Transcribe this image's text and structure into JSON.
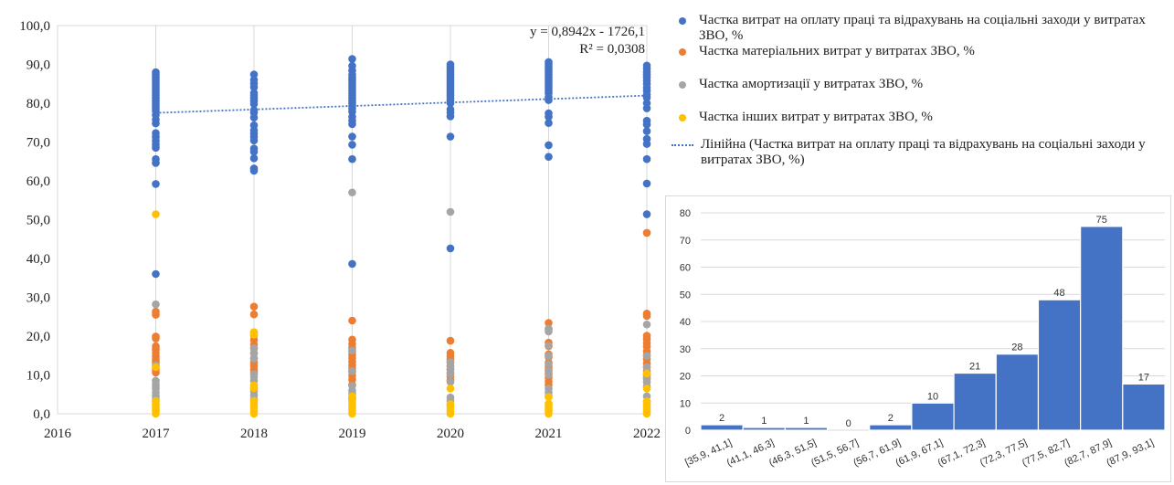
{
  "chart_data": [
    {
      "type": "scatter",
      "title": "",
      "xlabel": "",
      "ylabel": "",
      "xlim": [
        2016,
        2022
      ],
      "ylim": [
        0,
        100
      ],
      "x_ticks": [
        "2016",
        "2017",
        "2018",
        "2019",
        "2020",
        "2021",
        "2022"
      ],
      "y_ticks": [
        "0,0",
        "10,0",
        "20,0",
        "30,0",
        "40,0",
        "50,0",
        "60,0",
        "70,0",
        "80,0",
        "90,0",
        "100,0"
      ],
      "grid": "vertical",
      "legend_position": "right",
      "colors": {
        "blue": "#4472c4",
        "orange": "#ed7d31",
        "gray": "#a5a5a5",
        "yellow": "#ffc000"
      },
      "series": [
        {
          "name": "Частка витрат на оплату праці та відрахувань на соціальні заходи у витратах ЗВО, %",
          "color": "#4472c4",
          "points": [
            {
              "x": 2017,
              "y": [
                88,
                87.3,
                86.6,
                86,
                85.3,
                84.6,
                84,
                83.3,
                82.6,
                82,
                81.3,
                80.6,
                80,
                79.3,
                78.6,
                78,
                77,
                75.8,
                74.8,
                72.3,
                71.3,
                70.3,
                69.3,
                68.5,
                65.6,
                64.6,
                59.2,
                36
              ]
            },
            {
              "x": 2018,
              "y": [
                87.4,
                86,
                85.1,
                84.1,
                82.6,
                82,
                81.3,
                80.6,
                79.8,
                78.2,
                77.6,
                76.3,
                74.3,
                73,
                72.2,
                71.3,
                70.4,
                68.3,
                67.5,
                65.8,
                63.2,
                62.6
              ]
            },
            {
              "x": 2019,
              "y": [
                91.4,
                89.6,
                88.4,
                87.3,
                86.6,
                86,
                85.3,
                84.6,
                84,
                83.3,
                82.6,
                82,
                81.3,
                80.6,
                80,
                79.3,
                78.6,
                77.8,
                76.5,
                75.5,
                74.6,
                71.4,
                69.3,
                65.6,
                38.6
              ]
            },
            {
              "x": 2020,
              "y": [
                90,
                89.3,
                88.6,
                88,
                87.3,
                86.6,
                86,
                85.3,
                84.6,
                84,
                83.3,
                82.6,
                82,
                81.3,
                80.6,
                80,
                78.4,
                77.6,
                76.6,
                71.4,
                42.6
              ]
            },
            {
              "x": 2021,
              "y": [
                90.6,
                90,
                89.3,
                88.6,
                88,
                87.3,
                86.6,
                86,
                85.3,
                84.6,
                84,
                83.3,
                82.6,
                81.6,
                80.8,
                77.4,
                76.5,
                74.9,
                69.2,
                66.2
              ]
            },
            {
              "x": 2022,
              "y": [
                89.7,
                88.9,
                88,
                87.3,
                86.6,
                85.8,
                85,
                84,
                83.2,
                82.2,
                81.4,
                80,
                78.7,
                75.5,
                74.5,
                72.8,
                70.8,
                69.5,
                65.6,
                59.3,
                51.4
              ]
            }
          ]
        },
        {
          "name": "Частка матеріальних витрат у витратах ЗВО, %",
          "color": "#ed7d31",
          "points": [
            {
              "x": 2017,
              "y": [
                26.3,
                25.5,
                19.9,
                19.4,
                17.4,
                16.6,
                15.7,
                14.8,
                14,
                13.3,
                12.4,
                11.5,
                10.6
              ]
            },
            {
              "x": 2018,
              "y": [
                27.6,
                25.6,
                21,
                20.2,
                19,
                17.8,
                16.8,
                15.6,
                14.3,
                13.2,
                12.3,
                11.3,
                10.6
              ]
            },
            {
              "x": 2019,
              "y": [
                24,
                19.1,
                18,
                17,
                16.1,
                15.2,
                14.3,
                13.4,
                12.5,
                11.6,
                10.8,
                9.8,
                8.8,
                7.5
              ]
            },
            {
              "x": 2020,
              "y": [
                18.8,
                15.7,
                14.8,
                14,
                13.2,
                12.3,
                11.4,
                10.5,
                9.6,
                8.6
              ]
            },
            {
              "x": 2021,
              "y": [
                23.4,
                21.8,
                18.3,
                17.4,
                15.3,
                14.6,
                13.2,
                12.2,
                11.3,
                10.4,
                9.3,
                8.3,
                7.4
              ]
            },
            {
              "x": 2022,
              "y": [
                46.6,
                25.8,
                25.2,
                20.1,
                19.2,
                18.2,
                17.3,
                16.1,
                15.1,
                14.1,
                13,
                12,
                11,
                10,
                9
              ]
            }
          ]
        },
        {
          "name": "Частка амортизації у витратах ЗВО, %",
          "color": "#a5a5a5",
          "points": [
            {
              "x": 2017,
              "y": [
                28.2,
                12.5,
                8.5,
                7.6,
                7,
                6.5,
                5.5,
                4.5,
                3.8
              ]
            },
            {
              "x": 2018,
              "y": [
                16.9,
                15.6,
                14.2,
                10.2,
                9.5,
                8.5,
                6.5,
                5.8,
                4.8,
                3.8
              ]
            },
            {
              "x": 2019,
              "y": [
                57,
                16.3,
                11,
                7.2,
                6,
                5.2,
                4.2,
                3.6
              ]
            },
            {
              "x": 2020,
              "y": [
                52,
                13.3,
                12.2,
                11.4,
                10.2,
                8.2,
                4.2,
                3.3,
                2.2
              ]
            },
            {
              "x": 2021,
              "y": [
                21.9,
                21.2,
                17.5,
                14.9,
                12.8,
                11,
                10,
                6.5,
                5.5,
                4.5
              ]
            },
            {
              "x": 2022,
              "y": [
                23,
                14.9,
                12,
                9.3,
                8.2,
                7.1,
                4.5
              ]
            }
          ]
        },
        {
          "name": "Частка інших витрат у витратах ЗВО, %",
          "color": "#ffc000",
          "points": [
            {
              "x": 2017,
              "y": [
                51.4,
                12,
                3.3,
                2.5,
                1.8,
                1.2,
                0.6,
                0
              ]
            },
            {
              "x": 2018,
              "y": [
                21,
                20.4,
                7.3,
                6.6,
                3.3,
                2.6,
                1.9,
                1.2,
                0.6,
                0
              ]
            },
            {
              "x": 2019,
              "y": [
                4.5,
                3.1,
                2.5,
                1.8,
                1.2,
                0.6,
                0
              ]
            },
            {
              "x": 2020,
              "y": [
                6.5,
                2.5,
                1.8,
                1.2,
                0.6,
                0
              ]
            },
            {
              "x": 2021,
              "y": [
                4.3,
                2.6,
                1.9,
                1.2,
                0.6,
                0
              ]
            },
            {
              "x": 2022,
              "y": [
                10.4,
                6.5,
                3.2,
                2.5,
                1.8,
                1.2,
                0.6,
                0
              ]
            }
          ]
        }
      ],
      "trendline": {
        "name": "Лінійна (Частка витрат на оплату праці та відрахувань на соціальні заходи у витратах ЗВО, %)",
        "color": "#4472c4",
        "slope": 0.8942,
        "intercept": -1726.1,
        "x_range": [
          2017,
          2022
        ],
        "equation": "y = 0,8942x - 1726,1",
        "r2": "R² = 0,0308"
      }
    },
    {
      "type": "bar",
      "title": "",
      "xlabel": "",
      "ylabel": "",
      "ylim": [
        0,
        80
      ],
      "y_ticks": [
        "0",
        "10",
        "20",
        "30",
        "40",
        "50",
        "60",
        "70",
        "80"
      ],
      "color": "#4472c4",
      "categories": [
        "[35,9, 41,1]",
        "(41,1, 46,3]",
        "(46,3, 51,5]",
        "(51,5, 56,7]",
        "(56,7, 61,9]",
        "(61,9, 67,1]",
        "(67,1, 72,3]",
        "(72,3, 77,5]",
        "(77,5, 82,7]",
        "(82,7, 87,9]",
        "(87,9, 93,1]"
      ],
      "values": [
        2,
        1,
        1,
        0,
        2,
        10,
        21,
        28,
        48,
        75,
        17
      ]
    }
  ]
}
